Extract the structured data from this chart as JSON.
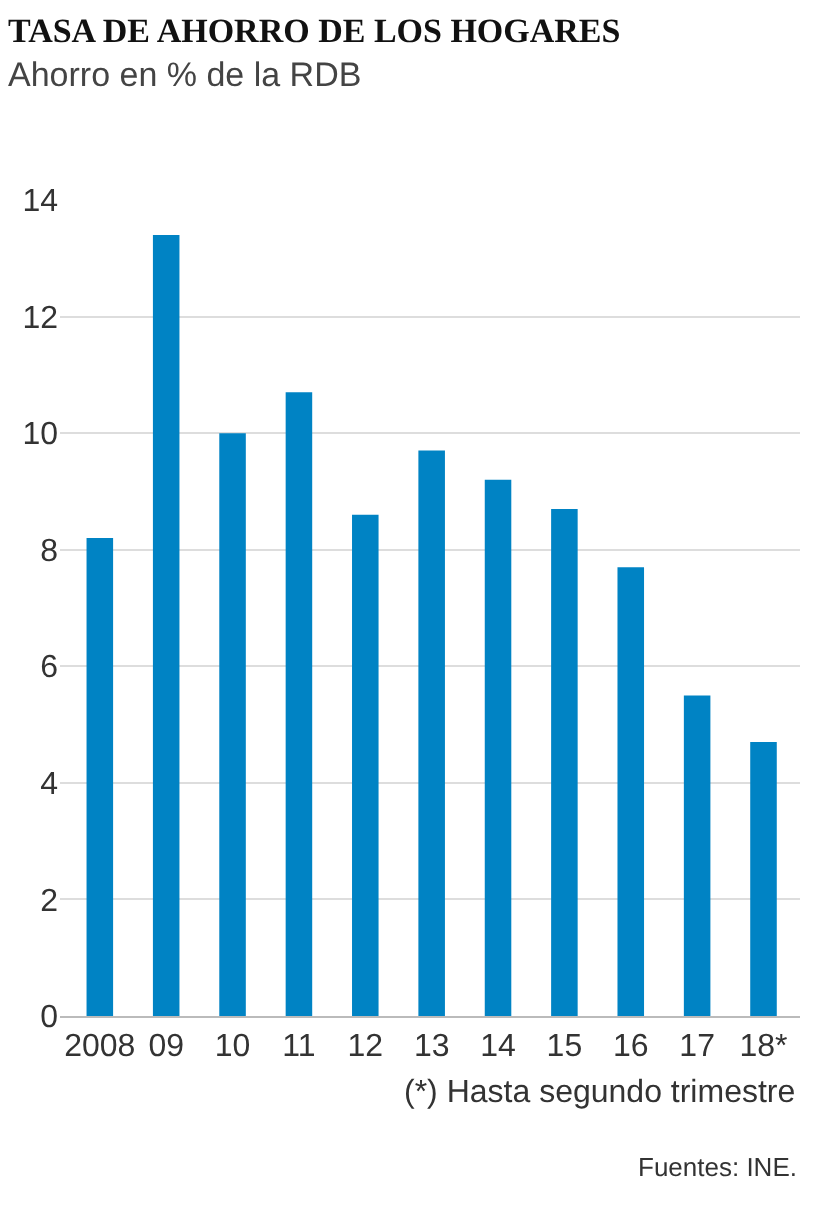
{
  "chart_data": {
    "type": "bar",
    "title": "TASA DE AHORRO DE LOS HOGARES",
    "subtitle": "Ahorro en % de la RDB",
    "categories": [
      "2008",
      "09",
      "10",
      "11",
      "12",
      "13",
      "14",
      "15",
      "16",
      "17",
      "18*"
    ],
    "values": [
      8.2,
      13.4,
      10.0,
      10.7,
      8.6,
      9.7,
      9.2,
      8.7,
      7.7,
      5.5,
      4.7
    ],
    "color": "#0083c4",
    "ylim": [
      0,
      14
    ],
    "yticks": [
      0,
      2,
      4,
      6,
      8,
      10,
      12,
      14
    ],
    "grid": "y",
    "annotations": [
      "(*) Hasta segundo trimestre",
      "Fuentes: INE."
    ]
  }
}
